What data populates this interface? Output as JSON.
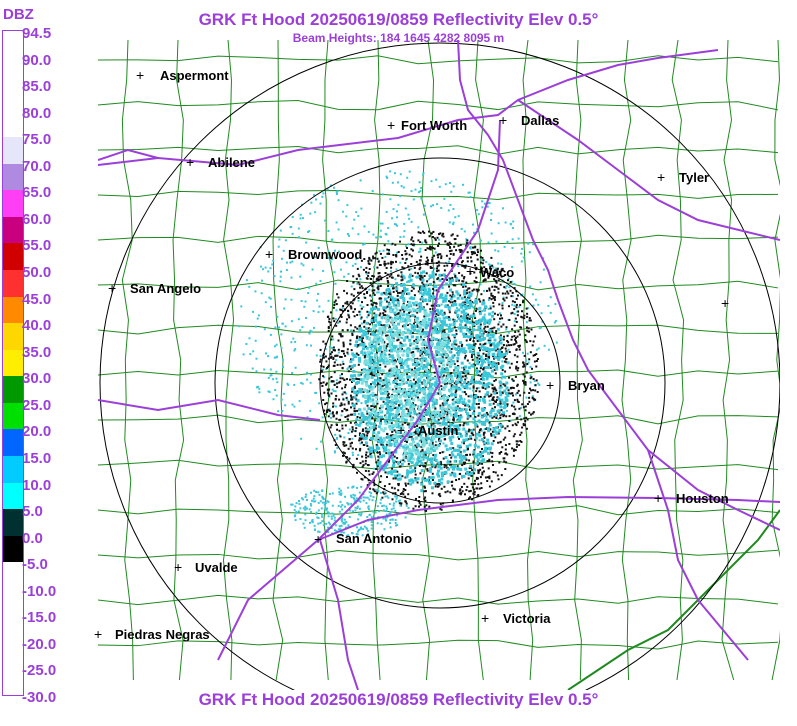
{
  "header": {
    "title": "GRK Ft Hood 20250619/0859 Reflectivity Elev 0.5°",
    "subtitle": "Beam Heights: 184 1645 4282 8095 m",
    "footer_title": "GRK Ft Hood 20250619/0859 Reflectivity Elev 0.5°"
  },
  "scale": {
    "unit": "DBZ",
    "ticks": [
      "94.5",
      "90.0",
      "85.0",
      "80.0",
      "75.0",
      "70.0",
      "65.0",
      "60.0",
      "55.0",
      "50.0",
      "45.0",
      "40.0",
      "35.0",
      "30.0",
      "25.0",
      "20.0",
      "15.0",
      "10.0",
      "5.0",
      "0.0",
      "-5.0",
      "-10.0",
      "-15.0",
      "-20.0",
      "-25.0",
      "-30.0"
    ],
    "colors": [
      "#ffffff",
      "#ffffff",
      "#ffffff",
      "#ffffff",
      "#e6e6fa",
      "#b08ae0",
      "#ff3ff5",
      "#c80080",
      "#d00000",
      "#ff3030",
      "#ff8a00",
      "#ffd700",
      "#ffee00",
      "#009900",
      "#00e000",
      "#0066ff",
      "#00ccff",
      "#00ffff",
      "#003030",
      "#000000",
      "#ffffff",
      "#ffffff",
      "#ffffff",
      "#ffffff",
      "#ffffff"
    ]
  },
  "map": {
    "cities": [
      {
        "name": "Aspermont"
      },
      {
        "name": "Fort Worth"
      },
      {
        "name": "Dallas"
      },
      {
        "name": "Abilene"
      },
      {
        "name": "Tyler"
      },
      {
        "name": "Brownwood"
      },
      {
        "name": "Waco"
      },
      {
        "name": "San Angelo"
      },
      {
        "name": "Bryan"
      },
      {
        "name": "Austin"
      },
      {
        "name": "Houston"
      },
      {
        "name": "San Antonio"
      },
      {
        "name": "Uvalde"
      },
      {
        "name": "Victoria"
      },
      {
        "name": "Piedras Negras"
      },
      {
        "name": ""
      }
    ],
    "colors": {
      "county_lines": "#1f8a1f",
      "highways": "#9b3fd8",
      "range_rings": "#000000",
      "echo_light": "#39c7d9",
      "echo_medium": "#7fdede",
      "echo_dark": "#111111"
    }
  }
}
